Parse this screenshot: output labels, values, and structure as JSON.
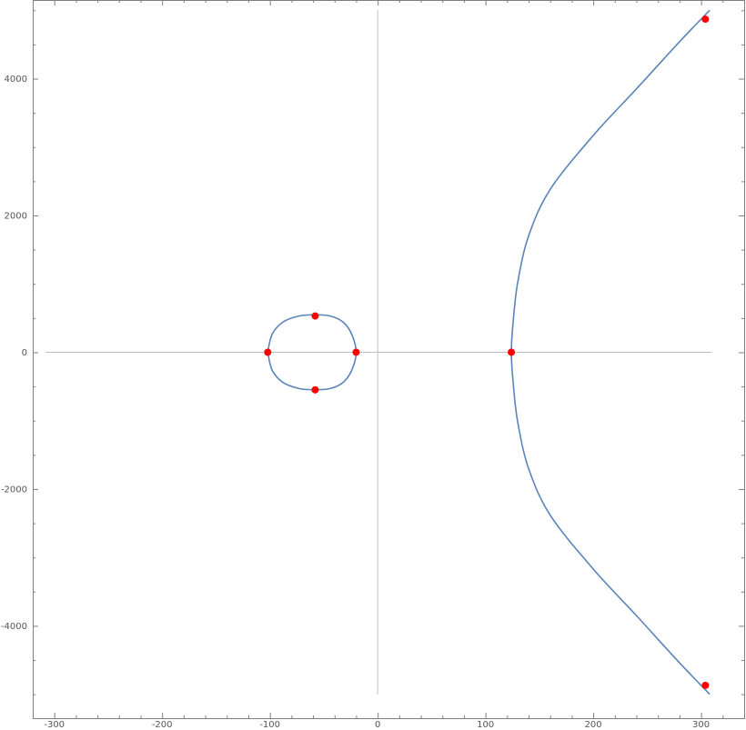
{
  "chart_data": {
    "type": "scatter",
    "title": "",
    "xlabel": "",
    "ylabel": "",
    "xlim": [
      -320,
      340
    ],
    "ylim": [
      -5350,
      5150
    ],
    "grid": false,
    "x_major_ticks": [
      -300,
      -200,
      -100,
      0,
      100,
      200,
      300
    ],
    "x_tick_labels": [
      "-300",
      "-200",
      "-100",
      "0",
      "100",
      "200",
      "300"
    ],
    "y_major_ticks": [
      -4000,
      -2000,
      0,
      2000,
      4000
    ],
    "y_tick_labels": [
      "-4000",
      "-2000",
      "0",
      "2000",
      "4000"
    ],
    "axis_lines": {
      "horizontal_y": 0,
      "horizontal_x_range": [
        -308,
        310
      ],
      "vertical_x": 0,
      "vertical_y_range": [
        -5000,
        5000
      ]
    },
    "series": [
      {
        "kind": "closed-curve",
        "color": "#5b84b8",
        "points": [
          [
            -102,
            0
          ],
          [
            -98,
            260
          ],
          [
            -88,
            440
          ],
          [
            -73,
            530
          ],
          [
            -58,
            548
          ],
          [
            -44,
            530
          ],
          [
            -32,
            440
          ],
          [
            -24,
            260
          ],
          [
            -20,
            0
          ],
          [
            -24,
            -260
          ],
          [
            -32,
            -440
          ],
          [
            -44,
            -530
          ],
          [
            -58,
            -548
          ],
          [
            -73,
            -530
          ],
          [
            -88,
            -440
          ],
          [
            -98,
            -260
          ],
          [
            -102,
            0
          ]
        ]
      },
      {
        "kind": "open-curve",
        "color": "#5b84b8",
        "points": [
          [
            308,
            5000
          ],
          [
            280,
            4540
          ],
          [
            240,
            3850
          ],
          [
            200,
            3170
          ],
          [
            160,
            2380
          ],
          [
            140,
            1700
          ],
          [
            130,
            1030
          ],
          [
            126,
            500
          ],
          [
            124,
            0
          ],
          [
            126,
            -500
          ],
          [
            130,
            -1030
          ],
          [
            140,
            -1700
          ],
          [
            160,
            -2380
          ],
          [
            200,
            -3170
          ],
          [
            240,
            -3850
          ],
          [
            280,
            -4540
          ],
          [
            308,
            -5000
          ]
        ]
      }
    ],
    "points": {
      "color": "#ff0000",
      "values": [
        [
          -102,
          0
        ],
        [
          -20,
          0
        ],
        [
          -58,
          530
        ],
        [
          -58,
          -550
        ],
        [
          124,
          0
        ],
        [
          304,
          4870
        ],
        [
          304,
          -4870
        ]
      ]
    }
  }
}
